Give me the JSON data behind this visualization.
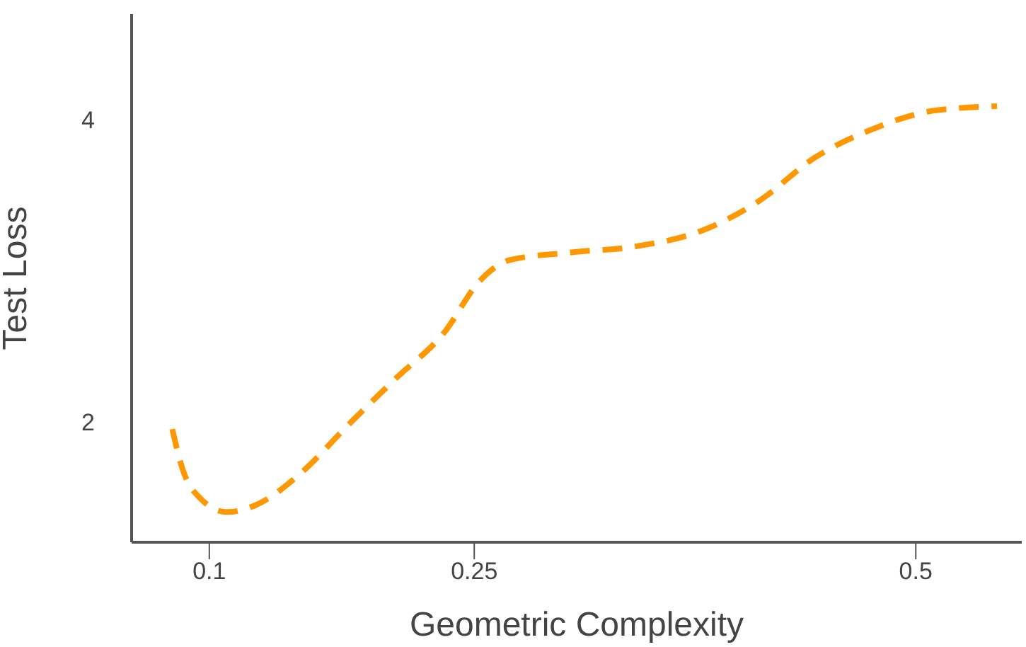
{
  "chart_data": {
    "type": "line",
    "xlabel": "Geometric Complexity",
    "ylabel": "Test Loss",
    "x": [
      0.079,
      0.085,
      0.095,
      0.11,
      0.127,
      0.152,
      0.178,
      0.206,
      0.233,
      0.253,
      0.27,
      0.304,
      0.341,
      0.38,
      0.411,
      0.443,
      0.476,
      0.51,
      0.546
    ],
    "series": [
      {
        "color": "#ff9800",
        "values": [
          1.95,
          1.68,
          1.49,
          1.4,
          1.45,
          1.66,
          1.97,
          2.29,
          2.59,
          2.93,
          3.07,
          3.12,
          3.16,
          3.27,
          3.46,
          3.75,
          3.94,
          4.06,
          4.09
        ]
      }
    ],
    "xlim": [
      0.056,
      0.56
    ],
    "xticks": [
      0.1,
      0.25,
      0.5
    ],
    "ylim": [
      1.2,
      4.7
    ],
    "yticks": [
      2,
      4
    ],
    "grid": false,
    "marker": "none",
    "line_style": "dashed"
  }
}
